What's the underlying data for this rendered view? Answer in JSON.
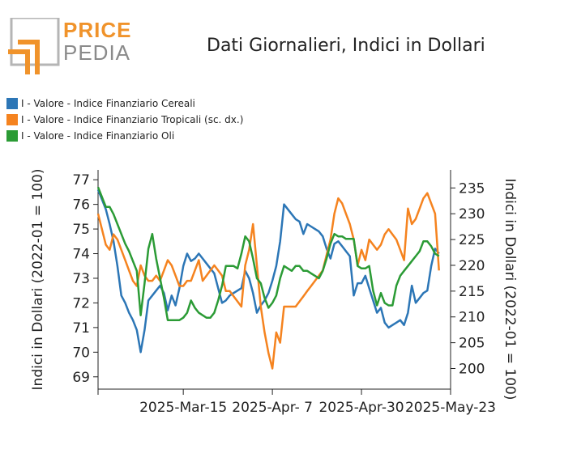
{
  "logo": {
    "word1": "PRICE",
    "word2": "PEDIA",
    "color_orange": "#f0932b",
    "color_grey": "#8a8a8a"
  },
  "colors": {
    "cereali": "#2c76b6",
    "tropicali": "#f5831f",
    "oli": "#2b9b35"
  },
  "chart_data": {
    "type": "line",
    "title": "Dati Giornalieri, Indici in Dollari",
    "x_ticks": [
      "2025-Mar-15",
      "2025-Apr- 7",
      "2025-Apr-30",
      "2025-May-23"
    ],
    "y_left": {
      "label": "Indici in Dollari (2022-01 = 100)",
      "range": [
        68.5,
        77.4
      ],
      "ticks": [
        69,
        70,
        71,
        72,
        73,
        74,
        75,
        76,
        77
      ]
    },
    "y_right": {
      "label": "Indici in Dollari (2022-01 = 100)",
      "range": [
        196,
        238.5
      ],
      "ticks": [
        200,
        205,
        210,
        215,
        220,
        225,
        230,
        235
      ]
    },
    "x_range": [
      "2025-Feb-21",
      "2025-May-23"
    ],
    "grid": false,
    "legend_position": "top-left",
    "series": [
      {
        "name": "I - Valore - Indice Finanziario Cereali",
        "axis": "left",
        "color": "#2c76b6",
        "points": [
          [
            "2025-02-21",
            76.6
          ],
          [
            "2025-02-22",
            76.2
          ],
          [
            "2025-02-23",
            75.8
          ],
          [
            "2025-02-24",
            75.2
          ],
          [
            "2025-02-25",
            74.5
          ],
          [
            "2025-02-26",
            73.5
          ],
          [
            "2025-02-27",
            72.3
          ],
          [
            "2025-02-28",
            72.0
          ],
          [
            "2025-03-01",
            71.6
          ],
          [
            "2025-03-02",
            71.3
          ],
          [
            "2025-03-03",
            70.9
          ],
          [
            "2025-03-04",
            70.0
          ],
          [
            "2025-03-05",
            70.9
          ],
          [
            "2025-03-06",
            72.1
          ],
          [
            "2025-03-07",
            72.3
          ],
          [
            "2025-03-08",
            72.5
          ],
          [
            "2025-03-09",
            72.7
          ],
          [
            "2025-03-10",
            72.4
          ],
          [
            "2025-03-11",
            71.7
          ],
          [
            "2025-03-12",
            72.3
          ],
          [
            "2025-03-13",
            71.9
          ],
          [
            "2025-03-14",
            72.6
          ],
          [
            "2025-03-15",
            73.5
          ],
          [
            "2025-03-16",
            74.0
          ],
          [
            "2025-03-17",
            73.7
          ],
          [
            "2025-03-18",
            73.8
          ],
          [
            "2025-03-19",
            74.0
          ],
          [
            "2025-03-20",
            73.8
          ],
          [
            "2025-03-21",
            73.6
          ],
          [
            "2025-03-22",
            73.4
          ],
          [
            "2025-03-23",
            73.2
          ],
          [
            "2025-03-24",
            72.6
          ],
          [
            "2025-03-25",
            72.0
          ],
          [
            "2025-03-26",
            72.1
          ],
          [
            "2025-03-27",
            72.3
          ],
          [
            "2025-03-28",
            72.4
          ],
          [
            "2025-03-29",
            72.5
          ],
          [
            "2025-03-30",
            72.6
          ],
          [
            "2025-03-31",
            73.3
          ],
          [
            "2025-04-01",
            73.0
          ],
          [
            "2025-04-02",
            72.4
          ],
          [
            "2025-04-03",
            71.6
          ],
          [
            "2025-04-04",
            71.9
          ],
          [
            "2025-04-05",
            72.1
          ],
          [
            "2025-04-06",
            72.4
          ],
          [
            "2025-04-07",
            72.9
          ],
          [
            "2025-04-08",
            73.5
          ],
          [
            "2025-04-09",
            74.5
          ],
          [
            "2025-04-10",
            76.0
          ],
          [
            "2025-04-11",
            75.8
          ],
          [
            "2025-04-12",
            75.6
          ],
          [
            "2025-04-13",
            75.4
          ],
          [
            "2025-04-14",
            75.3
          ],
          [
            "2025-04-15",
            74.8
          ],
          [
            "2025-04-16",
            75.2
          ],
          [
            "2025-04-17",
            75.1
          ],
          [
            "2025-04-18",
            75.0
          ],
          [
            "2025-04-19",
            74.9
          ],
          [
            "2025-04-20",
            74.7
          ],
          [
            "2025-04-21",
            74.2
          ],
          [
            "2025-04-22",
            73.8
          ],
          [
            "2025-04-23",
            74.4
          ],
          [
            "2025-04-24",
            74.5
          ],
          [
            "2025-04-25",
            74.3
          ],
          [
            "2025-04-26",
            74.1
          ],
          [
            "2025-04-27",
            73.9
          ],
          [
            "2025-04-28",
            72.3
          ],
          [
            "2025-04-29",
            72.8
          ],
          [
            "2025-04-30",
            72.8
          ],
          [
            "2025-05-01",
            73.1
          ],
          [
            "2025-05-02",
            72.6
          ],
          [
            "2025-05-03",
            72.1
          ],
          [
            "2025-05-04",
            71.6
          ],
          [
            "2025-05-05",
            71.8
          ],
          [
            "2025-05-06",
            71.2
          ],
          [
            "2025-05-07",
            71.0
          ],
          [
            "2025-05-08",
            71.1
          ],
          [
            "2025-05-09",
            71.2
          ],
          [
            "2025-05-10",
            71.3
          ],
          [
            "2025-05-11",
            71.1
          ],
          [
            "2025-05-12",
            71.6
          ],
          [
            "2025-05-13",
            72.7
          ],
          [
            "2025-05-14",
            72.0
          ],
          [
            "2025-05-15",
            72.2
          ],
          [
            "2025-05-16",
            72.4
          ],
          [
            "2025-05-17",
            72.5
          ],
          [
            "2025-05-18",
            73.5
          ],
          [
            "2025-05-19",
            74.2
          ],
          [
            "2025-05-20",
            74.0
          ]
        ]
      },
      {
        "name": "I - Valore - Indice Finanziario Tropicali (sc. dx.)",
        "axis": "right",
        "color": "#f5831f",
        "points": [
          [
            "2025-02-21",
            230
          ],
          [
            "2025-02-22",
            227
          ],
          [
            "2025-02-23",
            224
          ],
          [
            "2025-02-24",
            223
          ],
          [
            "2025-02-25",
            226
          ],
          [
            "2025-02-26",
            225
          ],
          [
            "2025-02-27",
            223
          ],
          [
            "2025-02-28",
            221
          ],
          [
            "2025-03-01",
            219
          ],
          [
            "2025-03-02",
            217
          ],
          [
            "2025-03-03",
            216
          ],
          [
            "2025-03-04",
            220
          ],
          [
            "2025-03-05",
            218
          ],
          [
            "2025-03-06",
            217
          ],
          [
            "2025-03-07",
            217
          ],
          [
            "2025-03-08",
            218
          ],
          [
            "2025-03-09",
            217
          ],
          [
            "2025-03-10",
            219
          ],
          [
            "2025-03-11",
            221
          ],
          [
            "2025-03-12",
            220
          ],
          [
            "2025-03-13",
            218
          ],
          [
            "2025-03-14",
            216
          ],
          [
            "2025-03-15",
            216
          ],
          [
            "2025-03-16",
            217
          ],
          [
            "2025-03-17",
            217
          ],
          [
            "2025-03-18",
            219
          ],
          [
            "2025-03-19",
            221
          ],
          [
            "2025-03-20",
            217
          ],
          [
            "2025-03-21",
            218
          ],
          [
            "2025-03-22",
            219
          ],
          [
            "2025-03-23",
            220
          ],
          [
            "2025-03-24",
            219
          ],
          [
            "2025-03-25",
            218
          ],
          [
            "2025-03-26",
            215
          ],
          [
            "2025-03-27",
            215
          ],
          [
            "2025-03-28",
            214
          ],
          [
            "2025-03-29",
            213
          ],
          [
            "2025-03-30",
            212
          ],
          [
            "2025-03-31",
            220
          ],
          [
            "2025-04-01",
            223
          ],
          [
            "2025-04-02",
            228
          ],
          [
            "2025-04-03",
            220
          ],
          [
            "2025-04-04",
            212
          ],
          [
            "2025-04-05",
            207
          ],
          [
            "2025-04-06",
            203
          ],
          [
            "2025-04-07",
            200
          ],
          [
            "2025-04-08",
            207
          ],
          [
            "2025-04-09",
            205
          ],
          [
            "2025-04-10",
            212
          ],
          [
            "2025-04-11",
            212
          ],
          [
            "2025-04-12",
            212
          ],
          [
            "2025-04-13",
            212
          ],
          [
            "2025-04-14",
            213
          ],
          [
            "2025-04-15",
            214
          ],
          [
            "2025-04-16",
            215
          ],
          [
            "2025-04-17",
            216
          ],
          [
            "2025-04-18",
            217
          ],
          [
            "2025-04-19",
            218
          ],
          [
            "2025-04-20",
            219
          ],
          [
            "2025-04-21",
            222
          ],
          [
            "2025-04-22",
            225
          ],
          [
            "2025-04-23",
            230
          ],
          [
            "2025-04-24",
            233
          ],
          [
            "2025-04-25",
            232
          ],
          [
            "2025-04-26",
            230
          ],
          [
            "2025-04-27",
            228
          ],
          [
            "2025-04-28",
            225
          ],
          [
            "2025-04-29",
            220
          ],
          [
            "2025-04-30",
            223
          ],
          [
            "2025-05-01",
            221
          ],
          [
            "2025-05-02",
            225
          ],
          [
            "2025-05-03",
            224
          ],
          [
            "2025-05-04",
            223
          ],
          [
            "2025-05-05",
            224
          ],
          [
            "2025-05-06",
            226
          ],
          [
            "2025-05-07",
            227
          ],
          [
            "2025-05-08",
            226
          ],
          [
            "2025-05-09",
            225
          ],
          [
            "2025-05-10",
            223
          ],
          [
            "2025-05-11",
            221
          ],
          [
            "2025-05-12",
            231
          ],
          [
            "2025-05-13",
            228
          ],
          [
            "2025-05-14",
            229
          ],
          [
            "2025-05-15",
            231
          ],
          [
            "2025-05-16",
            233
          ],
          [
            "2025-05-17",
            234
          ],
          [
            "2025-05-18",
            232
          ],
          [
            "2025-05-19",
            230
          ],
          [
            "2025-05-20",
            219
          ]
        ]
      },
      {
        "name": "I - Valore - Indice Finanziario Oli",
        "axis": "left",
        "color": "#2b9b35",
        "points": [
          [
            "2025-02-21",
            76.7
          ],
          [
            "2025-02-22",
            76.3
          ],
          [
            "2025-02-23",
            75.9
          ],
          [
            "2025-02-24",
            75.9
          ],
          [
            "2025-02-25",
            75.6
          ],
          [
            "2025-02-26",
            75.2
          ],
          [
            "2025-02-27",
            74.8
          ],
          [
            "2025-02-28",
            74.4
          ],
          [
            "2025-03-01",
            74.1
          ],
          [
            "2025-03-02",
            73.7
          ],
          [
            "2025-03-03",
            73.3
          ],
          [
            "2025-03-04",
            71.5
          ],
          [
            "2025-03-05",
            72.8
          ],
          [
            "2025-03-06",
            74.2
          ],
          [
            "2025-03-07",
            74.8
          ],
          [
            "2025-03-08",
            73.8
          ],
          [
            "2025-03-09",
            73.0
          ],
          [
            "2025-03-10",
            72.2
          ],
          [
            "2025-03-11",
            71.3
          ],
          [
            "2025-03-12",
            71.3
          ],
          [
            "2025-03-13",
            71.3
          ],
          [
            "2025-03-14",
            71.3
          ],
          [
            "2025-03-15",
            71.4
          ],
          [
            "2025-03-16",
            71.6
          ],
          [
            "2025-03-17",
            72.1
          ],
          [
            "2025-03-18",
            71.8
          ],
          [
            "2025-03-19",
            71.6
          ],
          [
            "2025-03-20",
            71.5
          ],
          [
            "2025-03-21",
            71.4
          ],
          [
            "2025-03-22",
            71.4
          ],
          [
            "2025-03-23",
            71.6
          ],
          [
            "2025-03-24",
            72.1
          ],
          [
            "2025-03-25",
            72.7
          ],
          [
            "2025-03-26",
            73.5
          ],
          [
            "2025-03-27",
            73.5
          ],
          [
            "2025-03-28",
            73.5
          ],
          [
            "2025-03-29",
            73.4
          ],
          [
            "2025-03-30",
            74.0
          ],
          [
            "2025-03-31",
            74.7
          ],
          [
            "2025-04-01",
            74.5
          ],
          [
            "2025-04-02",
            73.8
          ],
          [
            "2025-04-03",
            73.0
          ],
          [
            "2025-04-04",
            72.8
          ],
          [
            "2025-04-05",
            72.2
          ],
          [
            "2025-04-06",
            71.8
          ],
          [
            "2025-04-07",
            72.0
          ],
          [
            "2025-04-08",
            72.3
          ],
          [
            "2025-04-09",
            73.0
          ],
          [
            "2025-04-10",
            73.5
          ],
          [
            "2025-04-11",
            73.4
          ],
          [
            "2025-04-12",
            73.3
          ],
          [
            "2025-04-13",
            73.5
          ],
          [
            "2025-04-14",
            73.5
          ],
          [
            "2025-04-15",
            73.3
          ],
          [
            "2025-04-16",
            73.3
          ],
          [
            "2025-04-17",
            73.2
          ],
          [
            "2025-04-18",
            73.1
          ],
          [
            "2025-04-19",
            73.0
          ],
          [
            "2025-04-20",
            73.3
          ],
          [
            "2025-04-21",
            73.8
          ],
          [
            "2025-04-22",
            74.4
          ],
          [
            "2025-04-23",
            74.8
          ],
          [
            "2025-04-24",
            74.7
          ],
          [
            "2025-04-25",
            74.7
          ],
          [
            "2025-04-26",
            74.6
          ],
          [
            "2025-04-27",
            74.6
          ],
          [
            "2025-04-28",
            74.6
          ],
          [
            "2025-04-29",
            73.5
          ],
          [
            "2025-04-30",
            73.4
          ],
          [
            "2025-05-01",
            73.4
          ],
          [
            "2025-05-02",
            73.5
          ],
          [
            "2025-05-03",
            72.5
          ],
          [
            "2025-05-04",
            71.9
          ],
          [
            "2025-05-05",
            72.4
          ],
          [
            "2025-05-06",
            72.0
          ],
          [
            "2025-05-07",
            71.9
          ],
          [
            "2025-05-08",
            71.9
          ],
          [
            "2025-05-09",
            72.7
          ],
          [
            "2025-05-10",
            73.1
          ],
          [
            "2025-05-11",
            73.3
          ],
          [
            "2025-05-12",
            73.5
          ],
          [
            "2025-05-13",
            73.7
          ],
          [
            "2025-05-14",
            73.9
          ],
          [
            "2025-05-15",
            74.1
          ],
          [
            "2025-05-16",
            74.5
          ],
          [
            "2025-05-17",
            74.5
          ],
          [
            "2025-05-18",
            74.3
          ],
          [
            "2025-05-19",
            74.0
          ],
          [
            "2025-05-20",
            73.9
          ]
        ]
      }
    ]
  }
}
